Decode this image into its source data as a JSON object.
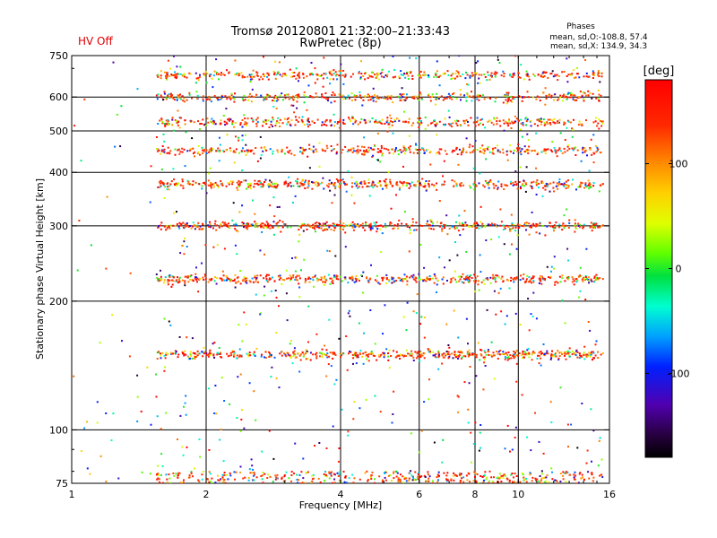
{
  "header": {
    "title": "Tromsø 20120801 21:32:00–21:33:43",
    "subtitle": "RwPretec (8p)",
    "status": "HV Off",
    "status_color": "#e00000"
  },
  "phases": {
    "title": "Phases",
    "line1": "mean, sd,O:-108.8, 57.4",
    "line2": "mean, sd,X: 134.9, 34.3"
  },
  "colorbar": {
    "unit": "[deg]",
    "ticks": [
      {
        "value": 100,
        "label": "100"
      },
      {
        "value": 0,
        "label": "0"
      },
      {
        "value": -100,
        "label": "-100"
      }
    ],
    "range": [
      -180,
      180
    ]
  },
  "chart_data": {
    "type": "scatter",
    "title": "Tromsø 20120801 21:32:00–21:33:43",
    "xlabel": "Frequency [MHz]",
    "ylabel": "Stationary phase Virtual Height [km]",
    "xscale": "log",
    "yscale": "log",
    "xlim": [
      1,
      16
    ],
    "ylim": [
      75,
      750
    ],
    "xticks": [
      {
        "value": 1,
        "label": "1"
      },
      {
        "value": 2,
        "label": "2"
      },
      {
        "value": 4,
        "label": "4"
      },
      {
        "value": 6,
        "label": "6"
      },
      {
        "value": 8,
        "label": "8"
      },
      {
        "value": 10,
        "label": "10"
      },
      {
        "value": 16,
        "label": "16"
      }
    ],
    "yticks": [
      {
        "value": 75,
        "label": "75"
      },
      {
        "value": 100,
        "label": "100"
      },
      {
        "value": 200,
        "label": "200"
      },
      {
        "value": 300,
        "label": "300"
      },
      {
        "value": 400,
        "label": "400"
      },
      {
        "value": 500,
        "label": "500"
      },
      {
        "value": 600,
        "label": "600"
      },
      {
        "value": 750,
        "label": "750"
      }
    ],
    "x_gridlines": [
      2,
      4,
      6,
      8,
      10
    ],
    "y_gridlines": [
      100,
      200,
      300,
      400,
      500,
      600
    ],
    "color_by": "phase (deg)",
    "echo_bands": [
      {
        "height_km": 150,
        "freq_range_mhz": [
          1.55,
          15.5
        ],
        "phase_deg": 150
      },
      {
        "height_km": 225,
        "freq_range_mhz": [
          1.55,
          15.5
        ],
        "phase_deg": 150
      },
      {
        "height_km": 300,
        "freq_range_mhz": [
          1.55,
          15.5
        ],
        "phase_deg": 150
      },
      {
        "height_km": 375,
        "freq_range_mhz": [
          1.55,
          15.5
        ],
        "phase_deg": 150
      },
      {
        "height_km": 450,
        "freq_range_mhz": [
          1.55,
          15.5
        ],
        "phase_deg": 150
      },
      {
        "height_km": 525,
        "freq_range_mhz": [
          1.55,
          15.5
        ],
        "phase_deg": 150
      },
      {
        "height_km": 600,
        "freq_range_mhz": [
          1.55,
          15.5
        ],
        "phase_deg": 150
      },
      {
        "height_km": 675,
        "freq_range_mhz": [
          1.55,
          15.5
        ],
        "phase_deg": 150
      }
    ],
    "near_floor_band": {
      "height_range_km": [
        75,
        80
      ],
      "freq_range_mhz": [
        1.55,
        15.5
      ],
      "phase_deg": 150
    },
    "background_scatter": {
      "freq_range_mhz": [
        1.0,
        15.5
      ],
      "height_range_km": [
        75,
        750
      ],
      "phase_deg_range": [
        -180,
        180
      ]
    }
  }
}
